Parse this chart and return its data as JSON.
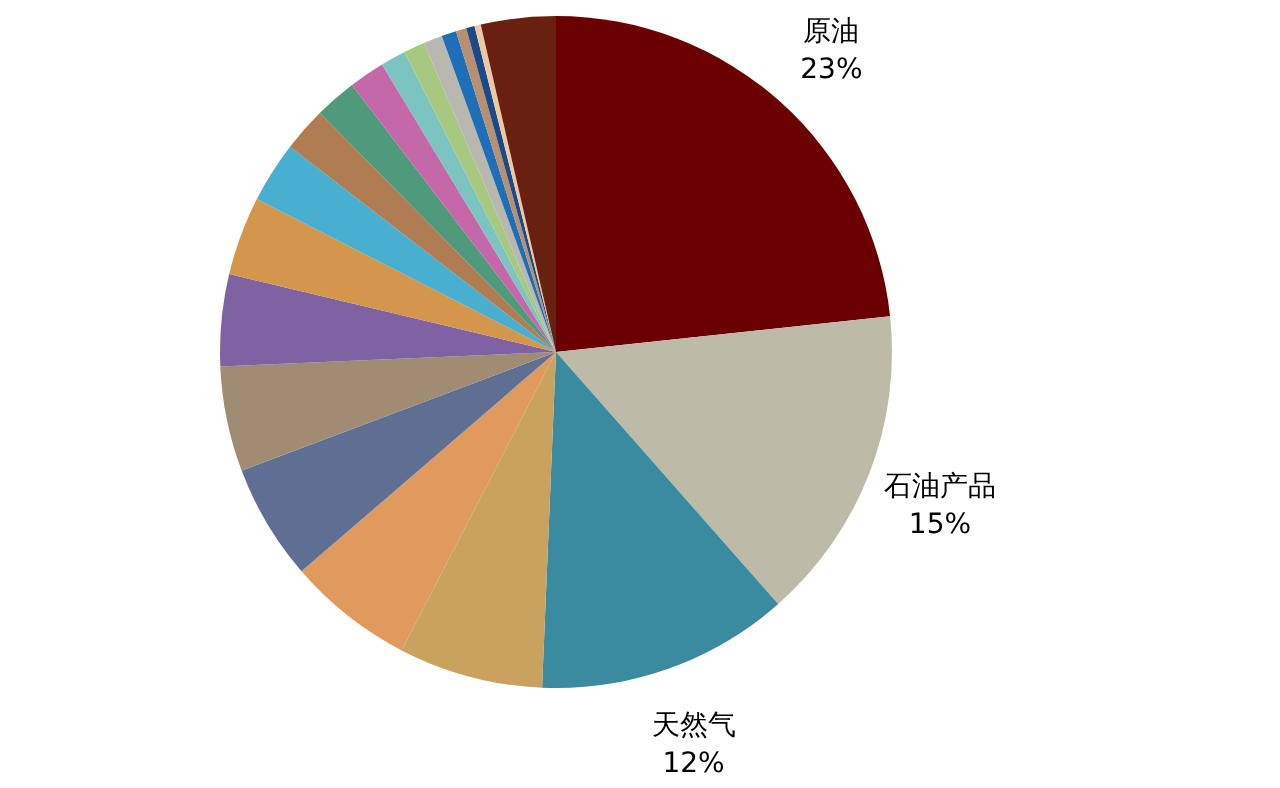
{
  "chart_data": {
    "type": "pie",
    "categories": [
      "原油",
      "石油产品",
      "天然气",
      null,
      null,
      null,
      null,
      null,
      null,
      null,
      null,
      null,
      null,
      null,
      null,
      null,
      null,
      null,
      null,
      null,
      null
    ],
    "values": [
      23,
      15,
      12,
      6.85,
      6,
      5.5,
      5,
      4.35,
      3.75,
      2.9,
      2.1,
      2,
      1.7,
      1.2,
      1.0,
      0.9,
      0.7,
      0.5,
      0.4,
      0.3,
      3.55
    ],
    "value_labels": [
      "23%",
      "15%",
      "12%",
      null,
      null,
      null,
      null,
      null,
      null,
      null,
      null,
      null,
      null,
      null,
      null,
      null,
      null,
      null,
      null,
      null,
      null
    ],
    "colors": [
      "#6b0000",
      "#bdbaa8",
      "#3a8aa0",
      "#c8a25e",
      "#e09a5e",
      "#5f6f94",
      "#a08c72",
      "#7e62a2",
      "#d4964a",
      "#48afd0",
      "#b07c52",
      "#4e9a7a",
      "#c468aa",
      "#7cc4c0",
      "#a8c880",
      "#b8b8b0",
      "#1f6fb8",
      "#b89070",
      "#1a4a8a",
      "#f0c8a0",
      "#6a2010"
    ]
  }
}
